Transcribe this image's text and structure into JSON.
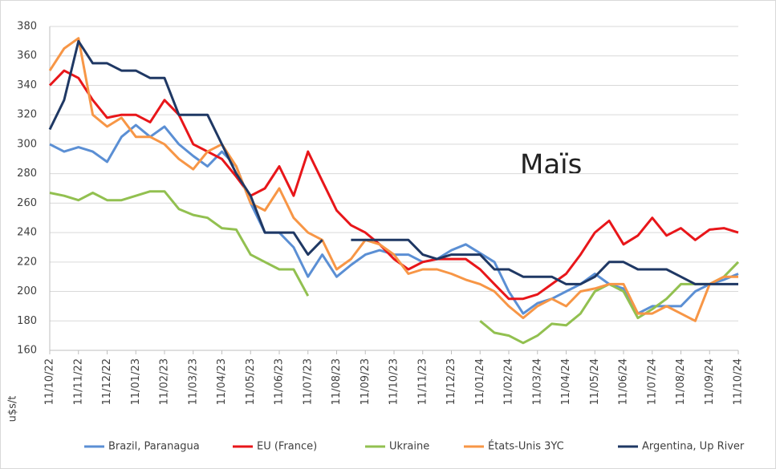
{
  "chart_data": {
    "type": "line",
    "annotation": "Maïs",
    "y_label": "u$s/t",
    "categories": [
      "11/10/22",
      null,
      "11/11/22",
      null,
      "11/12/22",
      null,
      "11/01/23",
      null,
      "11/02/23",
      null,
      "11/03/23",
      null,
      "11/04/23",
      null,
      "11/05/23",
      null,
      "11/06/23",
      null,
      "11/07/23",
      null,
      "11/08/23",
      null,
      "11/09/23",
      null,
      "11/10/23",
      null,
      "11/11/23",
      null,
      "11/12/23",
      null,
      "11/01/24",
      null,
      "11/02/24",
      null,
      "11/03/24",
      null,
      "11/04/24",
      null,
      "11/05/24",
      null,
      "11/06/24",
      null,
      "11/07/24",
      null,
      "11/08/24",
      null,
      "11/09/24",
      null,
      "11/10/24"
    ],
    "ylim": [
      160,
      380
    ],
    "yticks": [
      160,
      180,
      200,
      220,
      240,
      260,
      280,
      300,
      320,
      340,
      360,
      380
    ],
    "grid": true,
    "legend": "bottom",
    "series": [
      {
        "name": "Brazil, Paranagua",
        "color": "#5b8fd4",
        "values": [
          300,
          295,
          298,
          295,
          288,
          305,
          313,
          305,
          312,
          300,
          292,
          285,
          295,
          285,
          260,
          240,
          240,
          230,
          210,
          225,
          210,
          218,
          225,
          228,
          225,
          225,
          220,
          222,
          228,
          232,
          226,
          220,
          200,
          185,
          192,
          195,
          200,
          205,
          212,
          205,
          202,
          185,
          190,
          190,
          190,
          200,
          205,
          208,
          212
        ]
      },
      {
        "name": "EU (France)",
        "color": "#e8161a",
        "values": [
          340,
          350,
          345,
          330,
          318,
          320,
          320,
          315,
          330,
          320,
          300,
          295,
          290,
          278,
          265,
          270,
          285,
          265,
          295,
          275,
          255,
          245,
          240,
          232,
          222,
          215,
          220,
          222,
          222,
          222,
          215,
          205,
          195,
          195,
          198,
          205,
          212,
          225,
          240,
          248,
          232,
          238,
          250,
          238,
          243,
          235,
          242,
          243,
          240
        ]
      },
      {
        "name": "Ukraine",
        "color": "#92c050",
        "values": [
          267,
          265,
          262,
          267,
          262,
          262,
          265,
          268,
          268,
          256,
          252,
          250,
          243,
          242,
          225,
          220,
          215,
          215,
          197,
          null,
          null,
          null,
          null,
          null,
          null,
          null,
          null,
          null,
          null,
          null,
          180,
          172,
          170,
          165,
          170,
          178,
          177,
          185,
          200,
          205,
          200,
          182,
          188,
          195,
          205,
          205,
          205,
          210,
          220
        ]
      },
      {
        "name": "États-Unis 3YC",
        "color": "#f79646",
        "values": [
          350,
          365,
          372,
          320,
          312,
          318,
          305,
          305,
          300,
          290,
          283,
          295,
          300,
          285,
          260,
          255,
          270,
          250,
          240,
          235,
          215,
          222,
          235,
          232,
          225,
          212,
          215,
          215,
          212,
          208,
          205,
          200,
          190,
          182,
          190,
          195,
          190,
          200,
          202,
          205,
          205,
          185,
          185,
          190,
          185,
          180,
          205,
          210,
          210
        ]
      },
      {
        "name": "Argentina, Up River",
        "color": "#1f3864",
        "values": [
          310,
          330,
          370,
          355,
          355,
          350,
          350,
          345,
          345,
          320,
          320,
          320,
          300,
          280,
          265,
          240,
          240,
          240,
          225,
          235,
          null,
          235,
          235,
          235,
          235,
          235,
          225,
          222,
          225,
          225,
          225,
          215,
          215,
          210,
          210,
          210,
          205,
          205,
          210,
          220,
          220,
          215,
          215,
          215,
          210,
          205,
          205,
          205,
          205
        ]
      }
    ]
  }
}
